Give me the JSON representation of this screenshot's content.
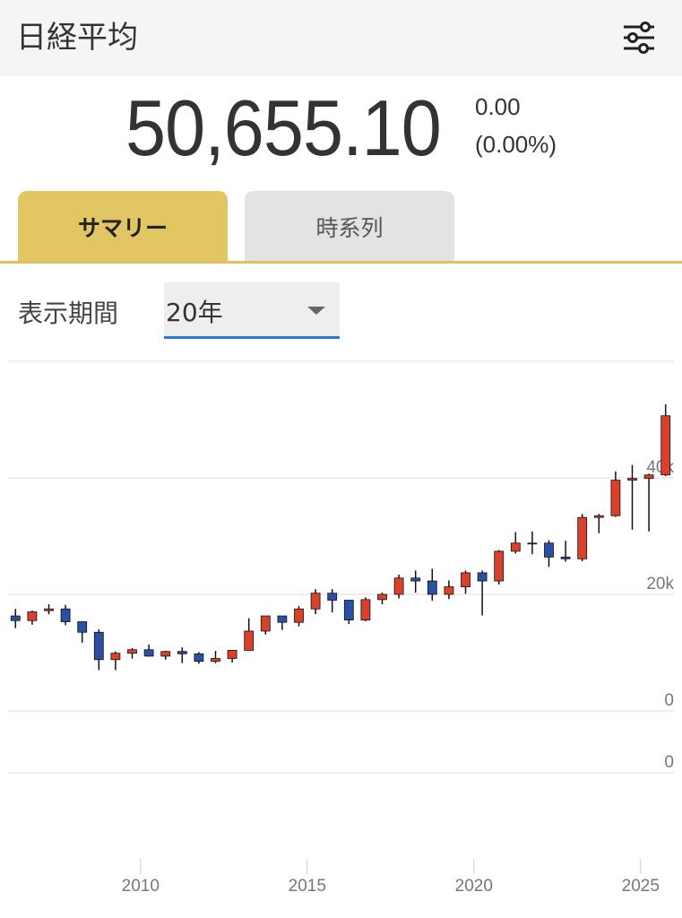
{
  "header": {
    "title": "日経平均"
  },
  "quote": {
    "price": "50,655.10",
    "change": "0.00",
    "change_percent": "(0.00%)"
  },
  "tabs": [
    "サマリー",
    "時系列"
  ],
  "period": {
    "label": "表示期間",
    "selected": "20年"
  },
  "chart_data": {
    "type": "candlestick",
    "x": [
      2006.25,
      2006.75,
      2007.25,
      2007.75,
      2008.25,
      2008.75,
      2009.25,
      2009.75,
      2010.25,
      2010.75,
      2011.25,
      2011.75,
      2012.25,
      2012.75,
      2013.25,
      2013.75,
      2014.25,
      2014.75,
      2015.25,
      2015.75,
      2016.25,
      2016.75,
      2017.25,
      2017.75,
      2018.25,
      2018.75,
      2019.25,
      2019.75,
      2020.25,
      2020.75,
      2021.25,
      2021.75,
      2022.25,
      2022.75,
      2023.25,
      2023.75,
      2024.25,
      2024.75,
      2025.25,
      2025.75
    ],
    "open": [
      16300,
      15500,
      17200,
      17500,
      15300,
      13500,
      8800,
      9900,
      10500,
      9400,
      10200,
      9800,
      8500,
      9000,
      10400,
      13700,
      16300,
      15200,
      17500,
      20200,
      19000,
      15600,
      19100,
      20000,
      22800,
      22300,
      20000,
      21300,
      23700,
      22300,
      27400,
      28800,
      28800,
      26400,
      26100,
      33200,
      33500,
      39600,
      39900,
      40500
    ],
    "high": [
      17500,
      17200,
      18300,
      18200,
      15400,
      14000,
      10200,
      10800,
      11400,
      10300,
      10900,
      10100,
      10300,
      10400,
      15900,
      16300,
      16300,
      18000,
      20900,
      20900,
      19000,
      19500,
      20300,
      23400,
      24100,
      24400,
      22400,
      24100,
      24100,
      27600,
      30700,
      30800,
      29300,
      29200,
      33800,
      33800,
      41100,
      42200,
      40700,
      52600
    ],
    "low": [
      14200,
      14800,
      16600,
      14700,
      11700,
      7000,
      7000,
      9000,
      9300,
      8800,
      8200,
      8100,
      8200,
      8300,
      10400,
      13100,
      13900,
      14500,
      16600,
      16900,
      14900,
      15400,
      18300,
      19300,
      20300,
      18900,
      19200,
      20100,
      16400,
      21700,
      27000,
      26900,
      24700,
      25600,
      25700,
      30500,
      33300,
      31100,
      30800,
      40300
    ],
    "close": [
      15500,
      17000,
      17500,
      15300,
      13500,
      8800,
      9900,
      10500,
      9400,
      10200,
      9800,
      8500,
      9000,
      10400,
      13700,
      16300,
      15200,
      17500,
      20200,
      19000,
      15600,
      19100,
      20000,
      22800,
      22300,
      20000,
      21300,
      23700,
      22300,
      27400,
      28800,
      28800,
      26400,
      26100,
      33200,
      33500,
      39600,
      39900,
      40500,
      50655.1
    ],
    "up_color": "#d9412b",
    "down_color": "#2b4fa3",
    "xlim": [
      2006,
      2026
    ],
    "xticks": [
      2010,
      2015,
      2020,
      2025
    ],
    "ylim": [
      0,
      60000
    ],
    "yticks": [
      {
        "value": 0,
        "label": "0"
      },
      {
        "value": 20000,
        "label": "20k"
      },
      {
        "value": 40000,
        "label": "40k"
      }
    ],
    "y2lim": [
      0,
      1
    ],
    "y2ticks": [
      0
    ],
    "grid": true
  }
}
